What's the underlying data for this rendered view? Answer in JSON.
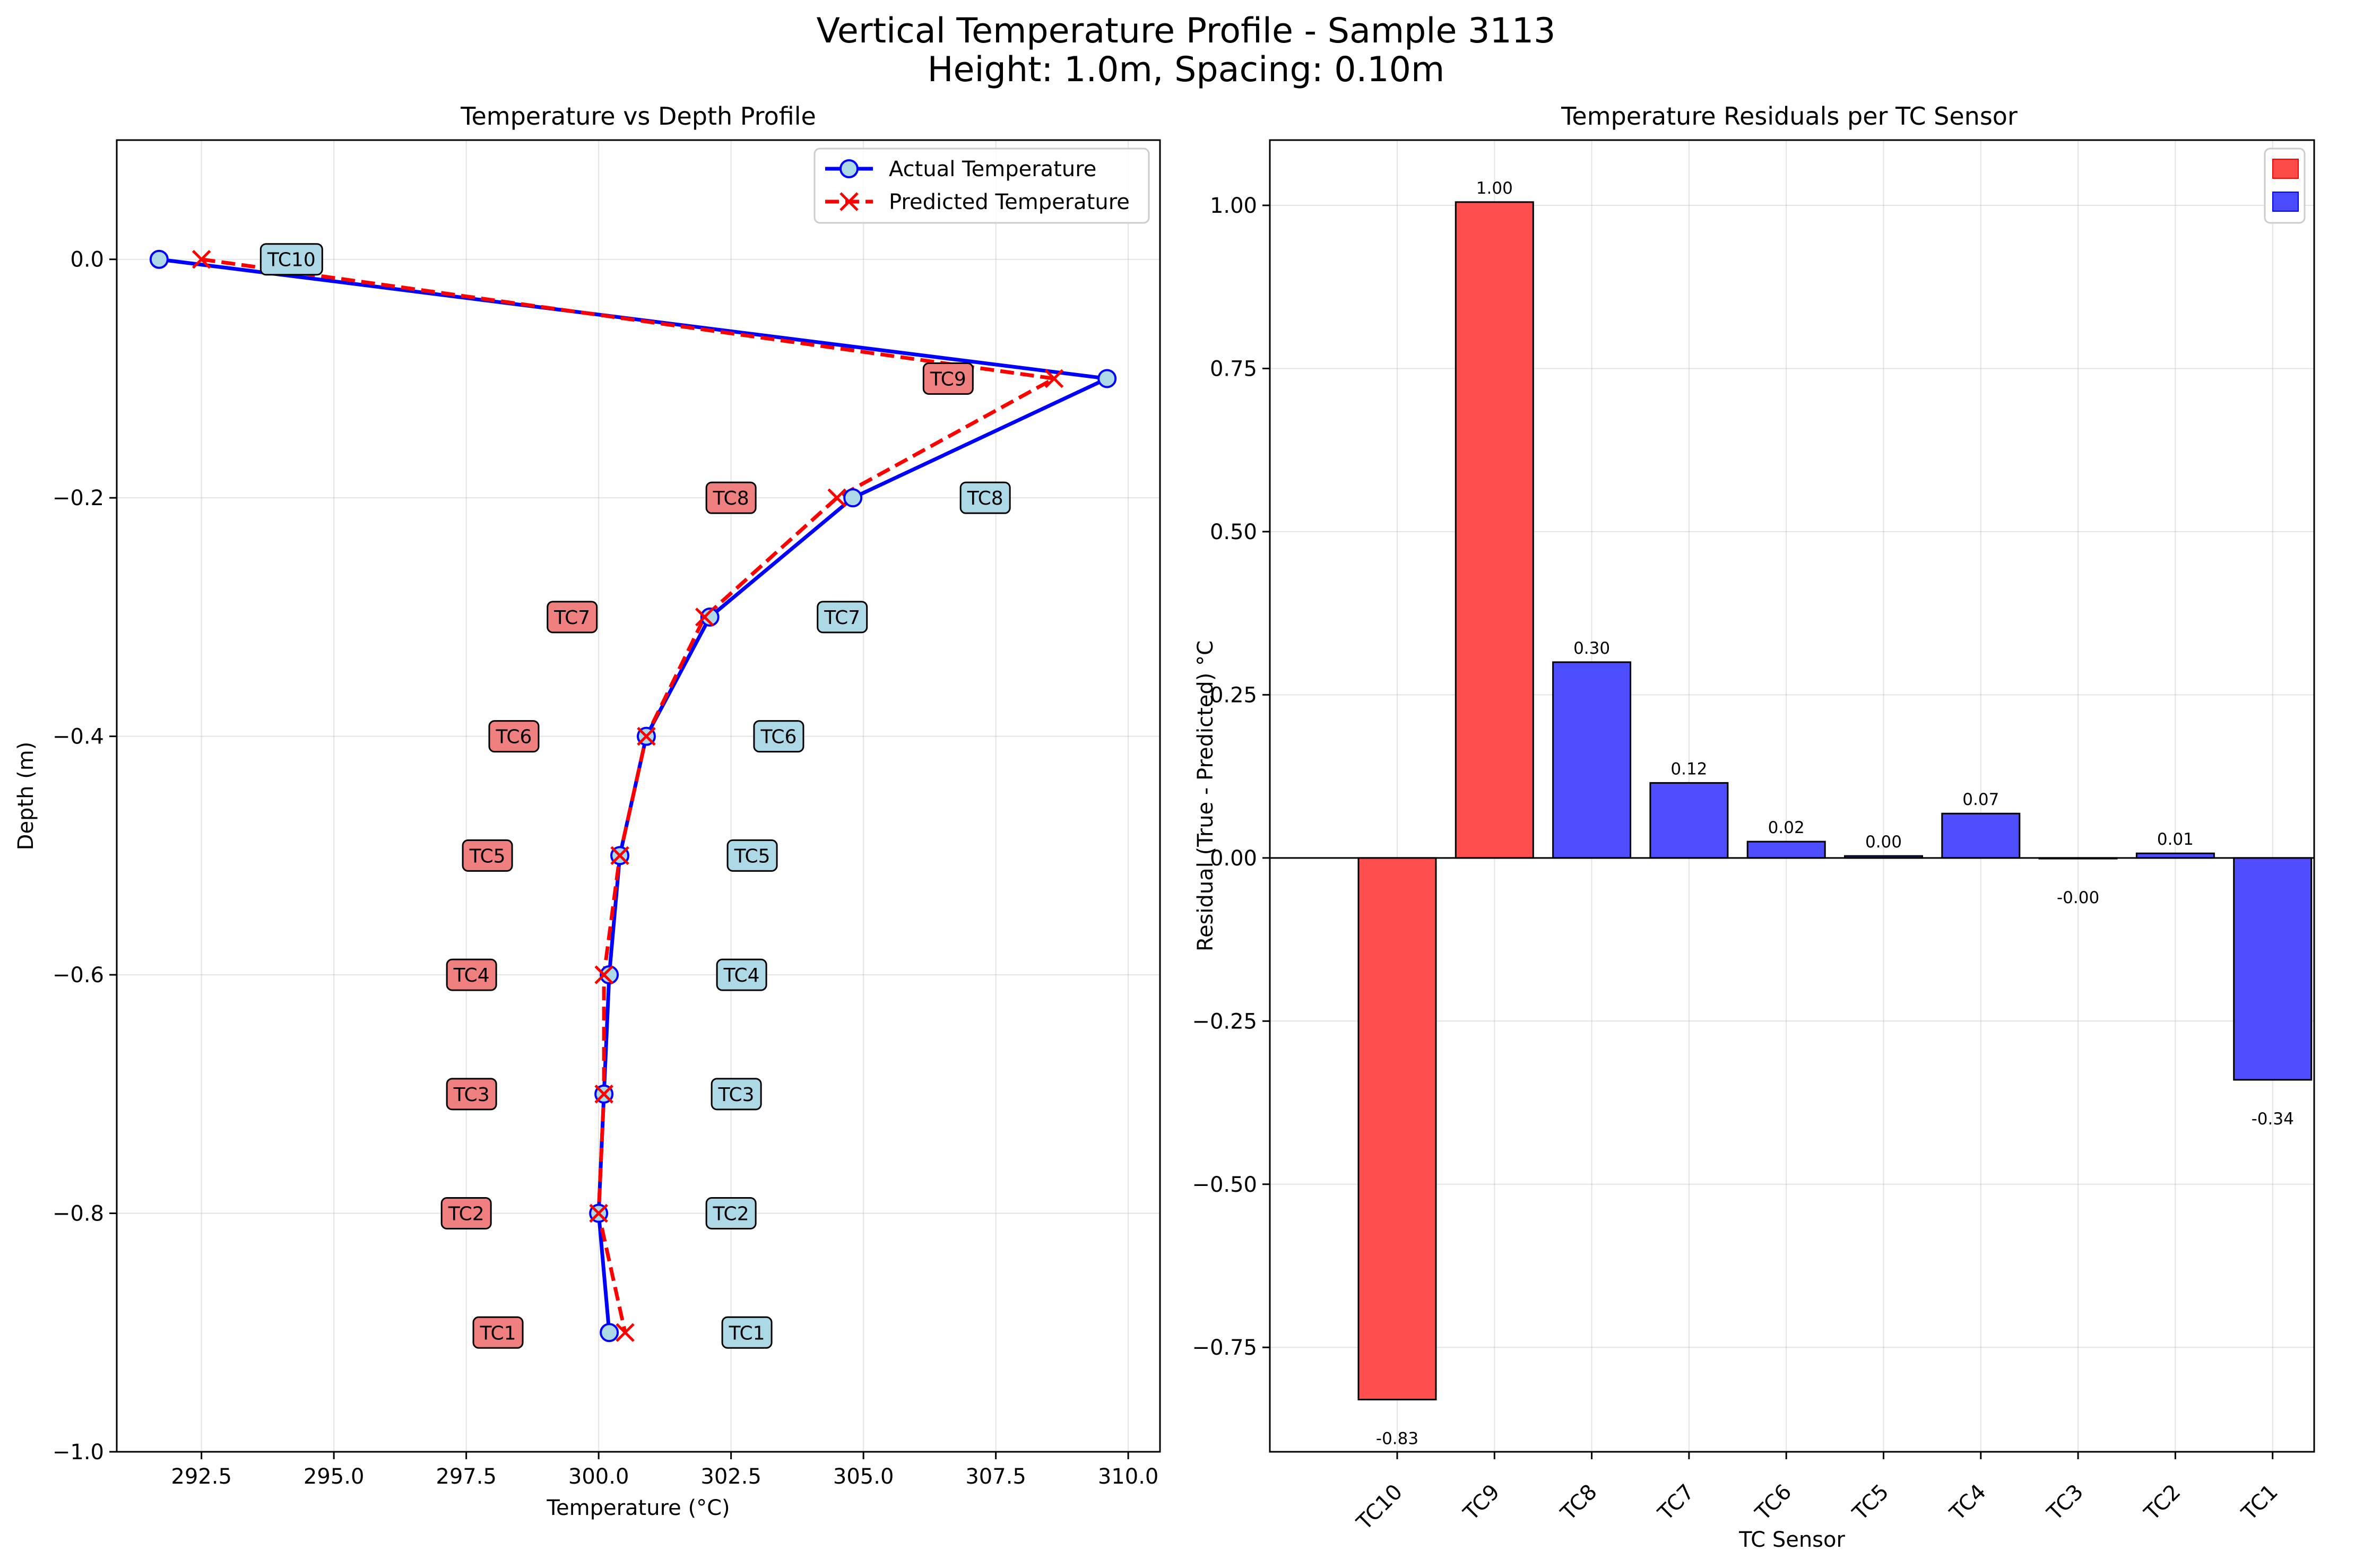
{
  "figure": {
    "title_line1": "Vertical Temperature Profile - Sample 3113",
    "title_line2": "Height: 1.0m, Spacing: 0.10m"
  },
  "chart_data": [
    {
      "type": "line",
      "title": "Temperature vs Depth Profile",
      "xlabel": "Temperature (°C)",
      "ylabel": "Depth (m)",
      "xlim": [
        290.9,
        310.6
      ],
      "ylim": [
        -1.0,
        0.1
      ],
      "xticks": [
        292.5,
        295.0,
        297.5,
        300.0,
        302.5,
        305.0,
        307.5,
        310.0
      ],
      "xtick_labels": [
        "292.5",
        "295.0",
        "297.5",
        "300.0",
        "302.5",
        "305.0",
        "307.5",
        "310.0"
      ],
      "yticks": [
        0.0,
        -0.2,
        -0.4,
        -0.6,
        -0.8,
        -1.0
      ],
      "ytick_labels": [
        "0.0",
        "−0.2",
        "−0.4",
        "−0.6",
        "−0.8",
        "−1.0"
      ],
      "grid": true,
      "legend_position": "top-right",
      "series": [
        {
          "name": "Actual Temperature",
          "color": "#0000ff",
          "marker": "circle",
          "points": [
            {
              "x": 291.7,
              "y": 0.0
            },
            {
              "x": 309.6,
              "y": -0.1
            },
            {
              "x": 304.8,
              "y": -0.2
            },
            {
              "x": 302.1,
              "y": -0.3
            },
            {
              "x": 300.9,
              "y": -0.4
            },
            {
              "x": 300.4,
              "y": -0.5
            },
            {
              "x": 300.2,
              "y": -0.6
            },
            {
              "x": 300.1,
              "y": -0.7
            },
            {
              "x": 300.0,
              "y": -0.8
            },
            {
              "x": 300.2,
              "y": -0.9
            }
          ]
        },
        {
          "name": "Predicted Temperature",
          "color": "#ff0000",
          "marker": "x",
          "points": [
            {
              "x": 292.5,
              "y": 0.0
            },
            {
              "x": 308.6,
              "y": -0.1
            },
            {
              "x": 304.5,
              "y": -0.2
            },
            {
              "x": 302.0,
              "y": -0.3
            },
            {
              "x": 300.9,
              "y": -0.4
            },
            {
              "x": 300.4,
              "y": -0.5
            },
            {
              "x": 300.1,
              "y": -0.6
            },
            {
              "x": 300.1,
              "y": -0.7
            },
            {
              "x": 300.0,
              "y": -0.8
            },
            {
              "x": 300.5,
              "y": -0.9
            }
          ]
        }
      ],
      "annotations": [
        {
          "text": "TC10",
          "x": 294.2,
          "y": 0.0,
          "color": "#add8e6"
        },
        {
          "text": "TC9",
          "x": 306.6,
          "y": -0.1,
          "color": "#f08080"
        },
        {
          "text": "TC8",
          "x": 302.5,
          "y": -0.2,
          "color": "#f08080"
        },
        {
          "text": "TC8",
          "x": 307.3,
          "y": -0.2,
          "color": "#add8e6"
        },
        {
          "text": "TC7",
          "x": 299.5,
          "y": -0.3,
          "color": "#f08080"
        },
        {
          "text": "TC7",
          "x": 304.6,
          "y": -0.3,
          "color": "#add8e6"
        },
        {
          "text": "TC6",
          "x": 298.4,
          "y": -0.4,
          "color": "#f08080"
        },
        {
          "text": "TC6",
          "x": 303.4,
          "y": -0.4,
          "color": "#add8e6"
        },
        {
          "text": "TC5",
          "x": 297.9,
          "y": -0.5,
          "color": "#f08080"
        },
        {
          "text": "TC5",
          "x": 302.9,
          "y": -0.5,
          "color": "#add8e6"
        },
        {
          "text": "TC4",
          "x": 297.6,
          "y": -0.6,
          "color": "#f08080"
        },
        {
          "text": "TC4",
          "x": 302.7,
          "y": -0.6,
          "color": "#add8e6"
        },
        {
          "text": "TC3",
          "x": 297.6,
          "y": -0.7,
          "color": "#f08080"
        },
        {
          "text": "TC3",
          "x": 302.6,
          "y": -0.7,
          "color": "#add8e6"
        },
        {
          "text": "TC2",
          "x": 297.5,
          "y": -0.8,
          "color": "#f08080"
        },
        {
          "text": "TC2",
          "x": 302.5,
          "y": -0.8,
          "color": "#add8e6"
        },
        {
          "text": "TC1",
          "x": 298.1,
          "y": -0.9,
          "color": "#f08080"
        },
        {
          "text": "TC1",
          "x": 302.8,
          "y": -0.9,
          "color": "#add8e6"
        }
      ]
    },
    {
      "type": "bar",
      "title": "Temperature Residuals per TC Sensor",
      "xlabel": "TC Sensor",
      "ylabel": "Residual (True - Predicted) °C",
      "ylim": [
        -0.91,
        1.1
      ],
      "yticks": [
        1.0,
        0.75,
        0.5,
        0.25,
        0.0,
        -0.25,
        -0.5,
        -0.75
      ],
      "ytick_labels": [
        "1.00",
        "0.75",
        "0.50",
        "0.25",
        "0.00",
        "−0.25",
        "−0.50",
        "−0.75"
      ],
      "grid": true,
      "legend_position": "top-right",
      "legend_colors": [
        "#ff4a4a",
        "#4a4aff"
      ],
      "categories": [
        "TC10",
        "TC9",
        "TC8",
        "TC7",
        "TC6",
        "TC5",
        "TC4",
        "TC3",
        "TC2",
        "TC1"
      ],
      "values": [
        -0.83,
        1.005,
        0.3,
        0.115,
        0.025,
        0.003,
        0.068,
        -0.001,
        0.007,
        -0.34
      ],
      "value_labels": [
        "-0.83",
        "1.00",
        "0.30",
        "0.12",
        "0.02",
        "0.00",
        "0.07",
        "-0.00",
        "0.01",
        "-0.34"
      ],
      "bar_colors": [
        "#ff4a4a",
        "#ff4a4a",
        "#4a4aff",
        "#4a4aff",
        "#4a4aff",
        "#4a4aff",
        "#4a4aff",
        "#4a4aff",
        "#4a4aff",
        "#4a4aff"
      ]
    }
  ]
}
